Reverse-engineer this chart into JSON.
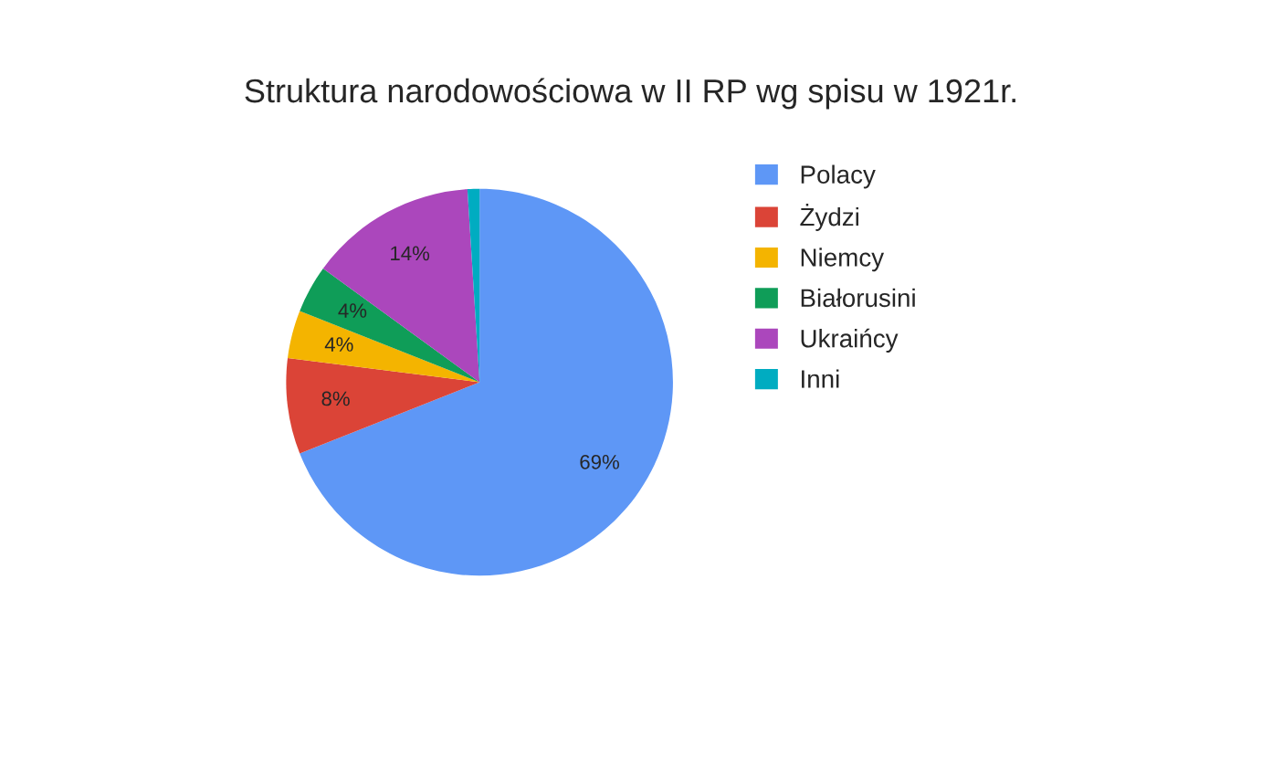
{
  "chart_data": {
    "type": "pie",
    "title": "Struktura narodowościowa w II RP wg spisu w 1921r.",
    "categories": [
      "Polacy",
      "Żydzi",
      "Niemcy",
      "Białorusini",
      "Ukraińcy",
      "Inni"
    ],
    "values": [
      69,
      8,
      4,
      4,
      14,
      1
    ],
    "colors": [
      "#5e97f6",
      "#db4437",
      "#f4b400",
      "#0f9d58",
      "#ab47bc",
      "#00acc1"
    ],
    "value_labels": [
      "69%",
      "8%",
      "4%",
      "4%",
      "14%",
      null
    ],
    "legend": "right"
  }
}
